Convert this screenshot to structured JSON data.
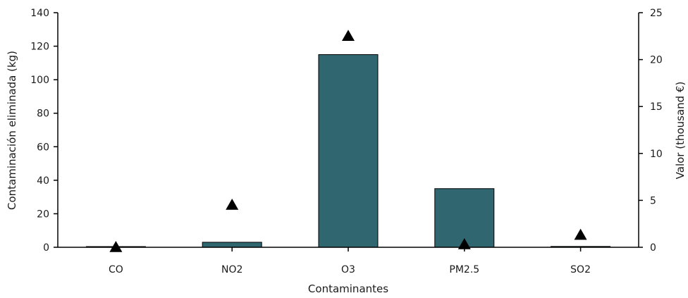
{
  "chart_data": {
    "type": "bar",
    "categories": [
      "CO",
      "NO2",
      "O3",
      "PM2.5",
      "SO2"
    ],
    "series": [
      {
        "values": [
          0,
          3,
          115,
          35,
          0.5
        ],
        "kind": "bar",
        "axis": "left",
        "color": "#2f6670"
      },
      {
        "values": [
          0,
          4.5,
          22.5,
          0.3,
          1.3
        ],
        "kind": "marker",
        "marker": "triangle",
        "axis": "right",
        "color": "#000000"
      }
    ],
    "xlabel": "Contaminantes",
    "ylabel": "Contaminación eliminada (kg)",
    "y2label": "Valor (thousand €)",
    "ylim": [
      0,
      140
    ],
    "yticks": [
      0,
      20,
      40,
      60,
      80,
      100,
      120,
      140
    ],
    "y2lim": [
      0,
      25
    ],
    "y2ticks": [
      0,
      5,
      10,
      15,
      20,
      25
    ],
    "grid": false,
    "legend": "none"
  }
}
